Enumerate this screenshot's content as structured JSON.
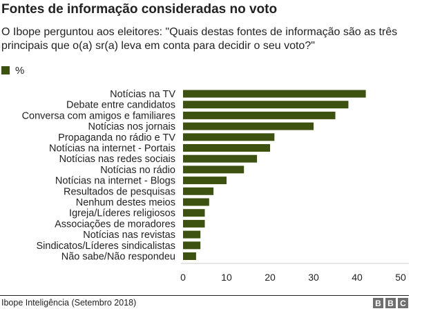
{
  "header": {
    "title": "Fontes de informação consideradas no voto",
    "subtitle": "O Ibope perguntou aos eleitores: \"Quais destas fontes de informação são as três principais que o(a) sr(a) leva em conta para decidir o seu voto?\""
  },
  "legend": {
    "label": "%",
    "color": "#3d5210"
  },
  "footer": {
    "source": "Ibope Inteligência (Setembro 2018)",
    "logo": [
      "B",
      "B",
      "C"
    ]
  },
  "chart_data": {
    "type": "bar",
    "orientation": "horizontal",
    "categories": [
      "Notícias na TV",
      "Debate entre candidatos",
      "Conversa com amigos e familiares",
      "Notícias nos jornais",
      "Propaganda no rádio e TV",
      "Notícias na internet - Portais",
      "Notícias nas redes sociais",
      "Notícias no rádio",
      "Notícias na internet - Blogs",
      "Resultados de pesquisas",
      "Nenhum destes meios",
      "Igreja/Líderes religiosos",
      "Associações de moradores",
      "Notícias nas revistas",
      "Sindicatos/Líderes sindicalistas",
      "Não sabe/Não respondeu"
    ],
    "values": [
      42,
      38,
      35,
      30,
      21,
      20,
      17,
      14,
      10,
      7,
      6,
      5,
      5,
      4,
      4,
      3
    ],
    "xlim": [
      0,
      50
    ],
    "xticks": [
      0,
      10,
      20,
      30,
      40,
      50
    ],
    "grid": false,
    "legend_position": "top-left",
    "bar_color": "#3d5210"
  }
}
